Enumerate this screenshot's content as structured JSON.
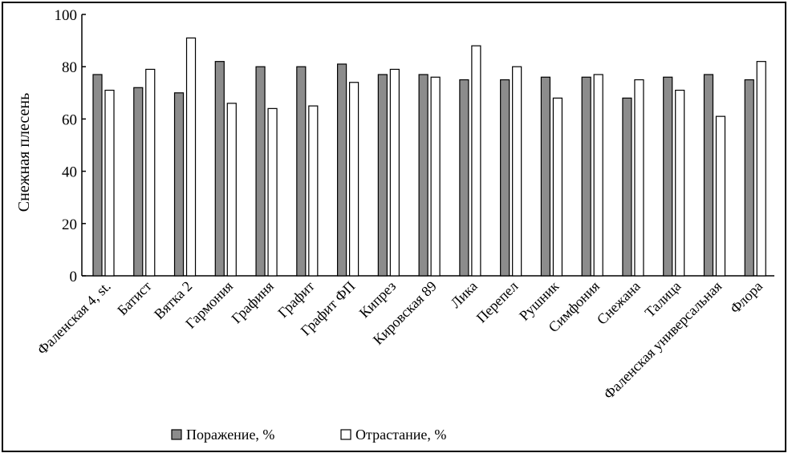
{
  "chart_data": {
    "type": "bar",
    "ylabel": "Снежная плесень",
    "ylim": [
      0,
      100
    ],
    "yticks": [
      0,
      20,
      40,
      60,
      80,
      100
    ],
    "legend_placement": "bottom",
    "categories": [
      "Фаленская 4, st.",
      "Батист",
      "Вятка 2",
      "Гармония",
      "Графиня",
      "Графит",
      "Графит ФП",
      "Кипрез",
      "Кировская 89",
      "Лика",
      "Перепел",
      "Рушник",
      "Симфония",
      "Снежана",
      "Талица",
      "Фаленская универсальная",
      "Флора"
    ],
    "series": [
      {
        "name": "Поражение, %",
        "color": "#8c8c8c",
        "values": [
          77,
          72,
          70,
          82,
          80,
          80,
          81,
          77,
          77,
          75,
          75,
          76,
          76,
          68,
          76,
          77,
          75
        ]
      },
      {
        "name": "Отрастание, %",
        "color": "#ffffff",
        "values": [
          71,
          79,
          91,
          66,
          64,
          65,
          74,
          79,
          76,
          88,
          80,
          68,
          77,
          75,
          71,
          61,
          82
        ]
      }
    ]
  }
}
